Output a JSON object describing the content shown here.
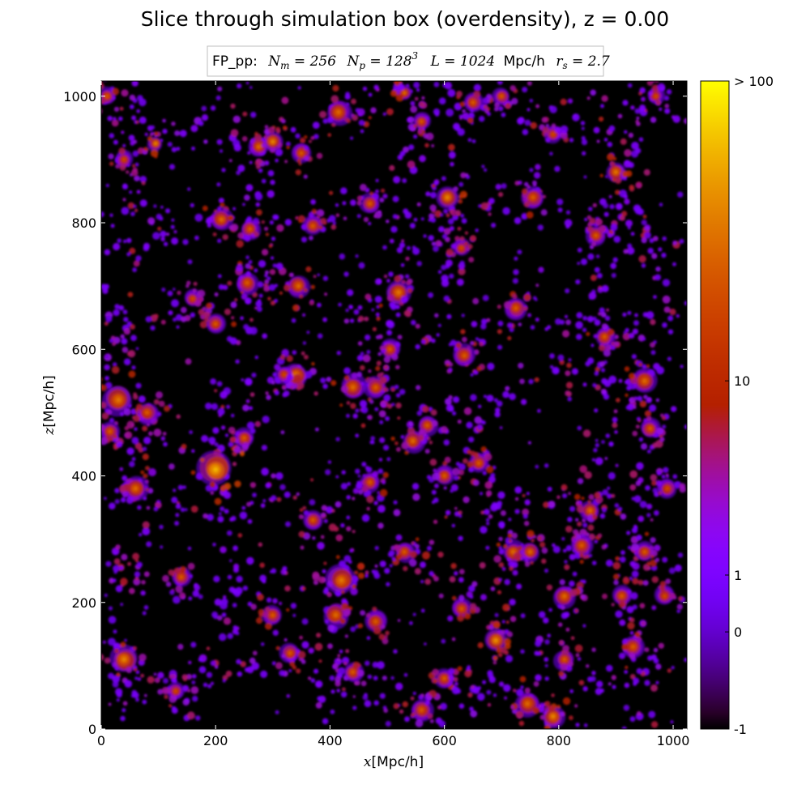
{
  "chart_data": {
    "type": "heatmap",
    "title": "Slice through simulation box (overdensity), z = 0.00",
    "subtitle": {
      "prefix": "FP_pp:",
      "n_m": "256",
      "n_p_base": "128",
      "n_p_exp": "3",
      "L": "1024",
      "L_units": "Mpc/h",
      "r_s": "2.7"
    },
    "xlabel": {
      "var": "x",
      "unit": "[Mpc/h]"
    },
    "ylabel": {
      "var": "z",
      "unit": "[Mpc/h]"
    },
    "xlim": [
      0,
      1024
    ],
    "ylim": [
      0,
      1024
    ],
    "xticks": [
      "0",
      "200",
      "400",
      "600",
      "800",
      "1000"
    ],
    "yticks": [
      "0",
      "200",
      "400",
      "600",
      "800",
      "1000"
    ],
    "colorbar": {
      "colormap": "gnuplot",
      "range_log1p": [
        0,
        2.0043
      ],
      "ticks": [
        {
          "label": "-1",
          "value": -1
        },
        {
          "label": "0",
          "value": 0
        },
        {
          "label": "1",
          "value": 1
        },
        {
          "label": "10",
          "value": 10
        },
        {
          "label": "> 100",
          "value": 100
        }
      ]
    },
    "structures": {
      "description_free": true,
      "background_value": -1,
      "clusters": [
        [
          200,
          410,
          14,
          60
        ],
        [
          95,
          925,
          6,
          40
        ],
        [
          275,
          920,
          8,
          30
        ],
        [
          300,
          928,
          8,
          40
        ],
        [
          415,
          975,
          10,
          30
        ],
        [
          530,
          1005,
          6,
          30
        ],
        [
          605,
          840,
          9,
          40
        ],
        [
          690,
          140,
          9,
          45
        ],
        [
          745,
          40,
          10,
          30
        ],
        [
          790,
          20,
          9,
          40
        ],
        [
          725,
          665,
          9,
          25
        ],
        [
          720,
          280,
          9,
          30
        ],
        [
          750,
          280,
          8,
          30
        ],
        [
          810,
          210,
          9,
          30
        ],
        [
          855,
          345,
          8,
          30
        ],
        [
          900,
          880,
          8,
          35
        ],
        [
          950,
          550,
          10,
          30
        ],
        [
          960,
          475,
          8,
          25
        ],
        [
          340,
          560,
          10,
          35
        ],
        [
          440,
          540,
          10,
          30
        ],
        [
          480,
          540,
          9,
          25
        ],
        [
          545,
          455,
          9,
          30
        ],
        [
          570,
          480,
          8,
          25
        ],
        [
          420,
          235,
          12,
          35
        ],
        [
          410,
          180,
          10,
          30
        ],
        [
          345,
          700,
          9,
          30
        ],
        [
          255,
          705,
          9,
          25
        ],
        [
          30,
          520,
          12,
          35
        ],
        [
          80,
          500,
          9,
          25
        ],
        [
          60,
          380,
          10,
          30
        ],
        [
          40,
          110,
          11,
          40
        ],
        [
          15,
          470,
          8,
          25
        ],
        [
          635,
          590,
          9,
          25
        ],
        [
          630,
          190,
          8,
          25
        ],
        [
          840,
          290,
          9,
          25
        ],
        [
          865,
          780,
          8,
          25
        ],
        [
          755,
          840,
          9,
          25
        ],
        [
          210,
          805,
          9,
          30
        ],
        [
          260,
          790,
          8,
          25
        ],
        [
          370,
          795,
          8,
          25
        ],
        [
          520,
          690,
          10,
          35
        ],
        [
          505,
          600,
          8,
          25
        ],
        [
          480,
          170,
          9,
          25
        ],
        [
          530,
          280,
          8,
          25
        ],
        [
          300,
          180,
          8,
          25
        ],
        [
          330,
          120,
          8,
          25
        ],
        [
          600,
          80,
          8,
          25
        ],
        [
          560,
          30,
          9,
          25
        ],
        [
          910,
          210,
          8,
          25
        ],
        [
          950,
          280,
          8,
          25
        ],
        [
          140,
          240,
          8,
          25
        ],
        [
          250,
          460,
          8,
          25
        ],
        [
          200,
          640,
          8,
          25
        ],
        [
          650,
          990,
          8,
          25
        ],
        [
          700,
          1000,
          7,
          25
        ],
        [
          560,
          960,
          7,
          25
        ],
        [
          10,
          1000,
          7,
          25
        ],
        [
          40,
          900,
          7,
          20
        ],
        [
          880,
          620,
          8,
          25
        ],
        [
          930,
          130,
          9,
          25
        ],
        [
          810,
          110,
          8,
          25
        ],
        [
          470,
          390,
          8,
          25
        ],
        [
          600,
          400,
          8,
          25
        ],
        [
          660,
          420,
          8,
          25
        ],
        [
          130,
          60,
          7,
          20
        ],
        [
          440,
          90,
          8,
          25
        ],
        [
          370,
          330,
          8,
          25
        ],
        [
          320,
          560,
          7,
          20
        ],
        [
          350,
          910,
          8,
          25
        ],
        [
          470,
          830,
          8,
          25
        ],
        [
          630,
          760,
          7,
          20
        ],
        [
          790,
          940,
          7,
          20
        ],
        [
          970,
          1000,
          7,
          20
        ],
        [
          990,
          380,
          8,
          20
        ],
        [
          985,
          210,
          8,
          20
        ],
        [
          160,
          680,
          7,
          20
        ]
      ],
      "filaments": [
        [
          [
            0,
            460
          ],
          [
            60,
            500
          ],
          [
            200,
            420
          ],
          [
            300,
            560
          ],
          [
            440,
            540
          ],
          [
            560,
            480
          ],
          [
            700,
            520
          ],
          [
            860,
            560
          ],
          [
            1000,
            480
          ]
        ],
        [
          [
            120,
            0
          ],
          [
            200,
            120
          ],
          [
            260,
            260
          ],
          [
            200,
            410
          ],
          [
            230,
            560
          ],
          [
            300,
            720
          ],
          [
            270,
            880
          ],
          [
            300,
            1000
          ]
        ],
        [
          [
            380,
            0
          ],
          [
            420,
            180
          ],
          [
            410,
            320
          ],
          [
            460,
            420
          ],
          [
            480,
            600
          ],
          [
            520,
            720
          ],
          [
            530,
            860
          ],
          [
            560,
            1000
          ]
        ],
        [
          [
            600,
            0
          ],
          [
            690,
            140
          ],
          [
            720,
            280
          ],
          [
            650,
            400
          ],
          [
            640,
            600
          ],
          [
            600,
            840
          ],
          [
            640,
            1000
          ]
        ],
        [
          [
            760,
            0
          ],
          [
            810,
            210
          ],
          [
            860,
            340
          ],
          [
            880,
            500
          ],
          [
            860,
            700
          ],
          [
            900,
            880
          ],
          [
            880,
            1000
          ]
        ],
        [
          [
            0,
            260
          ],
          [
            100,
            240
          ],
          [
            220,
            200
          ],
          [
            330,
            250
          ],
          [
            410,
            230
          ],
          [
            520,
            280
          ],
          [
            620,
            240
          ],
          [
            720,
            280
          ],
          [
            840,
            290
          ],
          [
            1000,
            260
          ]
        ],
        [
          [
            0,
            760
          ],
          [
            110,
            800
          ],
          [
            210,
            810
          ],
          [
            330,
            780
          ],
          [
            440,
            830
          ],
          [
            560,
            780
          ],
          [
            650,
            800
          ],
          [
            760,
            840
          ],
          [
            900,
            800
          ],
          [
            1000,
            760
          ]
        ],
        [
          [
            0,
            980
          ],
          [
            100,
            930
          ],
          [
            220,
            960
          ],
          [
            300,
            930
          ],
          [
            420,
            975
          ],
          [
            530,
            1005
          ],
          [
            660,
            980
          ],
          [
            800,
            960
          ],
          [
            1000,
            990
          ]
        ],
        [
          [
            0,
            80
          ],
          [
            120,
            60
          ],
          [
            250,
            100
          ],
          [
            340,
            120
          ],
          [
            450,
            80
          ],
          [
            560,
            40
          ],
          [
            660,
            80
          ],
          [
            790,
            20
          ],
          [
            900,
            80
          ],
          [
            1000,
            120
          ]
        ],
        [
          [
            0,
            620
          ],
          [
            120,
            660
          ],
          [
            250,
            700
          ],
          [
            360,
            680
          ],
          [
            500,
            660
          ],
          [
            640,
            590
          ],
          [
            730,
            660
          ],
          [
            860,
            630
          ],
          [
            1000,
            640
          ]
        ],
        [
          [
            0,
            360
          ],
          [
            80,
            380
          ],
          [
            190,
            350
          ],
          [
            300,
            380
          ],
          [
            420,
            340
          ],
          [
            520,
            360
          ],
          [
            650,
            330
          ],
          [
            760,
            360
          ],
          [
            880,
            350
          ],
          [
            1000,
            380
          ]
        ],
        [
          [
            40,
            1024
          ],
          [
            60,
            880
          ],
          [
            30,
            700
          ],
          [
            40,
            520
          ],
          [
            60,
            380
          ],
          [
            40,
            200
          ],
          [
            50,
            0
          ]
        ],
        [
          [
            960,
            1024
          ],
          [
            940,
            840
          ],
          [
            970,
            680
          ],
          [
            950,
            550
          ],
          [
            960,
            400
          ],
          [
            930,
            200
          ],
          [
            950,
            0
          ]
        ]
      ]
    }
  }
}
